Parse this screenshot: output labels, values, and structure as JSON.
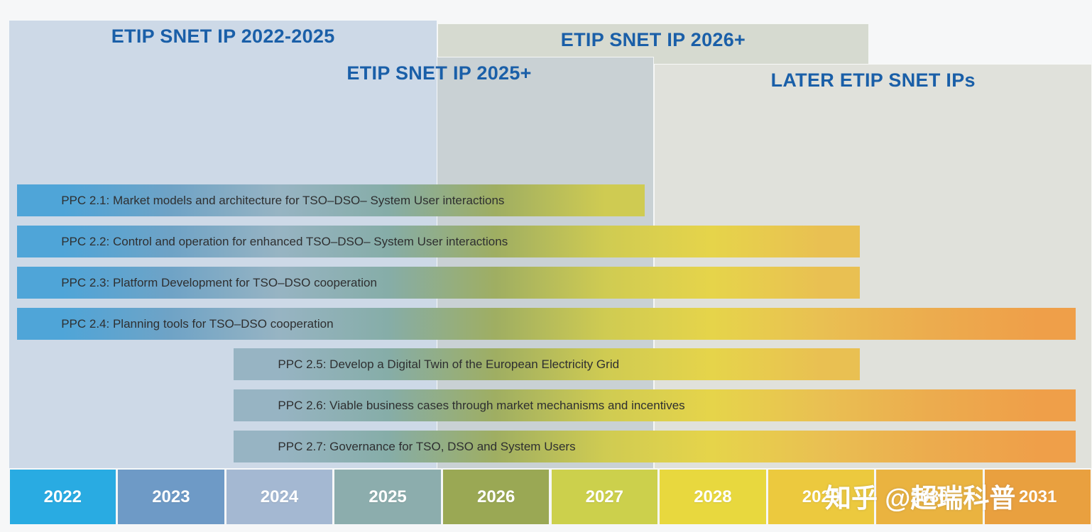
{
  "chart_data": {
    "type": "bar",
    "variant": "horizontal-gantt-roadmap",
    "x": {
      "categories": [
        "2022",
        "2023",
        "2024",
        "2025",
        "2026",
        "2027",
        "2028",
        "2029",
        "2030",
        "2031"
      ],
      "range": [
        2022,
        2032
      ]
    },
    "panels": [
      {
        "label": "ETIP SNET IP 2022-2025",
        "start": 2022.0,
        "end": 2025.96
      },
      {
        "label": "ETIP SNET IP 2025+",
        "start": 2023.99,
        "end": 2027.96
      },
      {
        "label": "ETIP SNET IP 2026+",
        "start": 2025.96,
        "end": 2029.94
      },
      {
        "label": "LATER ETIP SNET IPs",
        "start": 2027.96,
        "end": 2032.0
      }
    ],
    "bars": [
      {
        "label": "PPC 2.1: Market models and architecture for TSO–DSO– System User interactions",
        "start": 2022.08,
        "end": 2027.87
      },
      {
        "label": "PPC 2.2: Control and operation for enhanced TSO–DSO– System User interactions",
        "start": 2022.08,
        "end": 2029.86
      },
      {
        "label": "PPC 2.3: Platform Development for TSO–DSO cooperation",
        "start": 2022.08,
        "end": 2029.86
      },
      {
        "label": "PPC 2.4: Planning tools for TSO–DSO cooperation",
        "start": 2022.08,
        "end": 2031.85
      },
      {
        "label": "PPC 2.5: Develop a Digital Twin of the European Electricity Grid",
        "start": 2024.08,
        "end": 2029.86
      },
      {
        "label": "PPC 2.6: Viable business cases through market mechanisms and incentives",
        "start": 2024.08,
        "end": 2031.85
      },
      {
        "label": "PPC 2.7: Governance for TSO, DSO and System Users",
        "start": 2024.08,
        "end": 2031.85
      }
    ],
    "legend_position": "none",
    "grid": false
  },
  "style": {
    "title_color": "#1a5fa8",
    "panel_bg": [
      "#cdd9e7",
      "#c9d1d4",
      "#d6dad0",
      "#e0e1db"
    ],
    "year_colors": [
      "#29abe2",
      "#6e9ac6",
      "#a4b8d2",
      "#8cadad",
      "#9aa854",
      "#ccd04c",
      "#e8d83e",
      "#ecc93e",
      "#eab340",
      "#e9a03f"
    ],
    "bar_palette": [
      "#4fa5d8",
      "#6fa3c6",
      "#97b4c3",
      "#86ada8",
      "#9fae62",
      "#cfcb52",
      "#e6d44a",
      "#e9c052",
      "#ecac4e",
      "#ef9f49"
    ]
  },
  "watermark": "知乎 @超瑞科普"
}
